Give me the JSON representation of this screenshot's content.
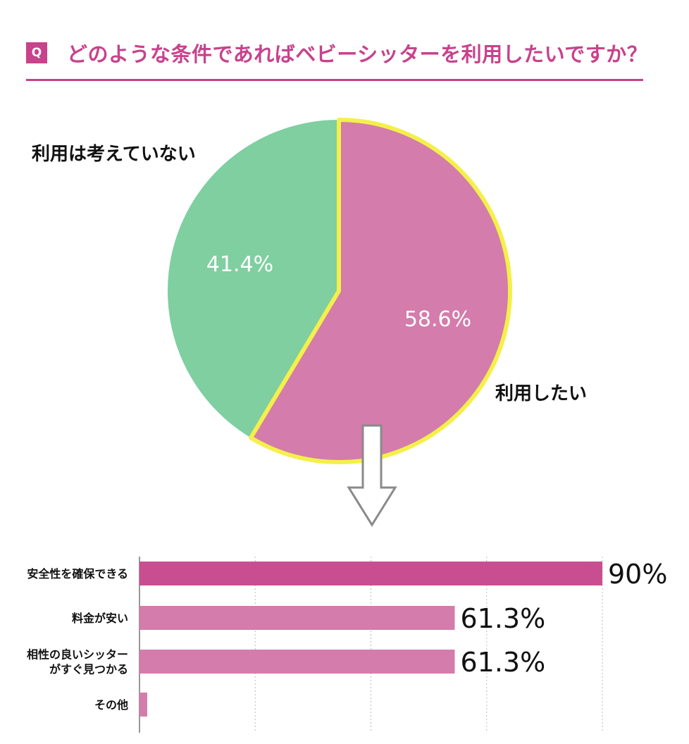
{
  "header": {
    "badge": "Q",
    "question": "どのような条件であればベビーシッターを利用したいですか？"
  },
  "colors": {
    "accent": "#c8428c",
    "pie_use": "#d47cab",
    "pie_no": "#7fcfa0",
    "pie_highlight": "#f4f04a",
    "bar_top": "#c94e91",
    "bar": "#d47cab",
    "grid": "#bbbbbb"
  },
  "chart_data": [
    {
      "type": "pie",
      "labels": [
        "利用したい",
        "利用は考えていない"
      ],
      "values": [
        58.6,
        41.4
      ],
      "value_labels": [
        "58.6%",
        "41.4%"
      ]
    },
    {
      "type": "bar",
      "orientation": "horizontal",
      "categories": [
        "安全性を確保できる",
        "料金が安い",
        "相性の良いシッターがすぐ見つかる",
        "その他"
      ],
      "category_lines": [
        [
          "安全性を確保できる"
        ],
        [
          "料金が安い"
        ],
        [
          "相性の良いシッター",
          "がすぐ見つかる"
        ],
        [
          "その他"
        ]
      ],
      "values": [
        90,
        61.3,
        61.3,
        1.5
      ],
      "value_labels": [
        "90%",
        "61.3%",
        "61.3%",
        ""
      ],
      "xlim": [
        0,
        90
      ],
      "grid": true
    }
  ]
}
